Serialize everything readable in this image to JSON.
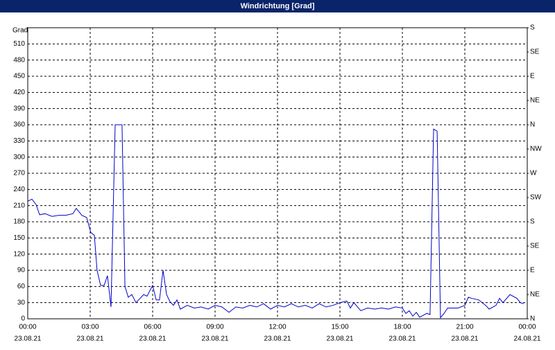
{
  "chart_data": {
    "type": "line",
    "title": "Windrichtung [Grad]",
    "ylabel": "Grad",
    "color": "#0000cc",
    "grid": true,
    "xlim": [
      0,
      24
    ],
    "ylim": [
      0,
      540
    ],
    "y2lim": [
      0,
      540
    ],
    "xticks": [
      {
        "value": 0,
        "label": "00:00",
        "date": "23.08.21"
      },
      {
        "value": 3,
        "label": "03:00",
        "date": "23.08.21"
      },
      {
        "value": 6,
        "label": "06:00",
        "date": "23.08.21"
      },
      {
        "value": 9,
        "label": "09:00",
        "date": "23.08.21"
      },
      {
        "value": 12,
        "label": "12:00",
        "date": "23.08.21"
      },
      {
        "value": 15,
        "label": "15:00",
        "date": "23.08.21"
      },
      {
        "value": 18,
        "label": "18:00",
        "date": "23.08.21"
      },
      {
        "value": 21,
        "label": "21:00",
        "date": "23.08.21"
      },
      {
        "value": 24,
        "label": "00:00",
        "date": "24.08.21"
      }
    ],
    "yticks": [
      0,
      30,
      60,
      90,
      120,
      150,
      180,
      210,
      240,
      270,
      300,
      330,
      360,
      390,
      420,
      450,
      480,
      510
    ],
    "y2ticks": [
      {
        "value": 0,
        "label": "N"
      },
      {
        "value": 45,
        "label": "NE"
      },
      {
        "value": 90,
        "label": "E"
      },
      {
        "value": 135,
        "label": "SE"
      },
      {
        "value": 180,
        "label": "S"
      },
      {
        "value": 225,
        "label": "SW"
      },
      {
        "value": 270,
        "label": "W"
      },
      {
        "value": 315,
        "label": "NW"
      },
      {
        "value": 360,
        "label": "N"
      },
      {
        "value": 405,
        "label": "NE"
      },
      {
        "value": 450,
        "label": "E"
      },
      {
        "value": 495,
        "label": "SE"
      },
      {
        "value": 540,
        "label": "S"
      }
    ],
    "x": [
      0,
      0.2,
      0.4,
      0.57,
      0.83,
      1.17,
      1.5,
      1.83,
      2.17,
      2.33,
      2.6,
      2.83,
      3.03,
      3.2,
      3.33,
      3.5,
      3.67,
      3.83,
      4,
      4.2,
      4.53,
      4.67,
      4.83,
      5,
      5.2,
      5.4,
      5.57,
      5.73,
      6,
      6.17,
      6.33,
      6.5,
      6.67,
      6.83,
      7,
      7.17,
      7.33,
      7.67,
      8,
      8.33,
      8.67,
      9,
      9.33,
      9.67,
      10,
      10.33,
      10.67,
      11,
      11.33,
      11.67,
      12,
      12.33,
      12.67,
      13,
      13.33,
      13.67,
      14,
      14.33,
      14.67,
      15,
      15.33,
      15.5,
      15.67,
      16,
      16.33,
      16.67,
      17,
      17.33,
      17.67,
      18,
      18.17,
      18.33,
      18.5,
      18.67,
      18.83,
      19.17,
      19.33,
      19.5,
      19.67,
      19.83,
      20,
      20.17,
      20.67,
      21,
      21.17,
      21.33,
      21.67,
      22,
      22.17,
      22.5,
      22.67,
      22.83,
      23.17,
      23.5,
      23.67,
      23.83
    ],
    "values": [
      218,
      222,
      212,
      193,
      195,
      190,
      192,
      192,
      195,
      205,
      192,
      188,
      160,
      155,
      90,
      62,
      62,
      80,
      22,
      360,
      360,
      60,
      40,
      45,
      30,
      38,
      45,
      42,
      62,
      35,
      35,
      90,
      45,
      32,
      25,
      35,
      18,
      25,
      20,
      22,
      18,
      25,
      22,
      12,
      22,
      20,
      25,
      22,
      28,
      18,
      25,
      22,
      28,
      22,
      25,
      20,
      28,
      22,
      25,
      30,
      33,
      20,
      30,
      15,
      20,
      18,
      20,
      18,
      22,
      20,
      10,
      15,
      5,
      12,
      3,
      10,
      8,
      352,
      348,
      2,
      10,
      20,
      20,
      25,
      40,
      38,
      35,
      25,
      18,
      25,
      38,
      30,
      45,
      38,
      30,
      28
    ]
  }
}
